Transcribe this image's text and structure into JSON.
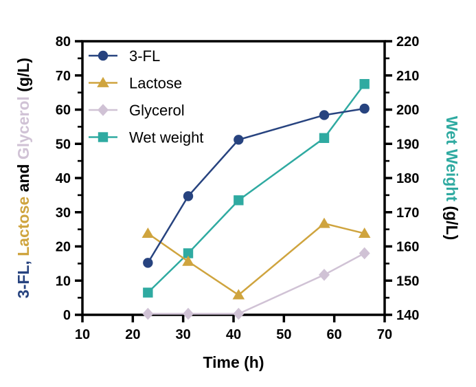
{
  "chart_data": {
    "type": "line",
    "title": "",
    "xlabel": "Time (h)",
    "x_range": [
      10,
      70
    ],
    "x_ticks": [
      10,
      20,
      30,
      40,
      50,
      60,
      70
    ],
    "grid": false,
    "legend_position": "top-left-inside",
    "legend": [
      "3-FL",
      "Lactose",
      "Glycerol",
      "Wet weight"
    ],
    "left_axis": {
      "range": [
        0,
        80
      ],
      "ticks": [
        0,
        10,
        20,
        30,
        40,
        50,
        60,
        70,
        80
      ],
      "minor_tick_step": 5,
      "label_segments": [
        {
          "text": "3-FL,",
          "color": "#27437f"
        },
        {
          "text": "Lactose",
          "color": "#cfa43e"
        },
        {
          "text": "and",
          "color": "#000000"
        },
        {
          "text": "Glycerol",
          "color": "#d0c2d5"
        },
        {
          "text": "(g/L)",
          "color": "#000000"
        }
      ]
    },
    "right_axis": {
      "range": [
        140,
        220
      ],
      "ticks": [
        140,
        150,
        160,
        170,
        180,
        190,
        200,
        210,
        220
      ],
      "minor_tick_step": 5,
      "label_segments": [
        {
          "text": "Wet Weight",
          "color": "#2faaa1"
        },
        {
          "text": "(g/L)",
          "color": "#000000"
        }
      ]
    },
    "x": [
      23,
      31,
      41,
      58,
      66
    ],
    "series": [
      {
        "name": "3-FL",
        "axis": "left",
        "marker": "circle",
        "color": "#27437f",
        "values": [
          15.2,
          34.7,
          51.2,
          58.4,
          60.3
        ]
      },
      {
        "name": "Lactose",
        "axis": "left",
        "marker": "triangle",
        "color": "#cfa43e",
        "values": [
          23.8,
          15.6,
          5.8,
          26.7,
          23.8
        ]
      },
      {
        "name": "Glycerol",
        "axis": "left",
        "marker": "diamond",
        "color": "#d0c2d5",
        "values": [
          0.3,
          0.3,
          0.3,
          11.7,
          18.0
        ]
      },
      {
        "name": "Wet weight",
        "axis": "right",
        "marker": "square",
        "color": "#2faaa1",
        "values": [
          146.5,
          158.0,
          173.5,
          191.7,
          207.5
        ]
      }
    ],
    "axis_color": "#000000"
  }
}
